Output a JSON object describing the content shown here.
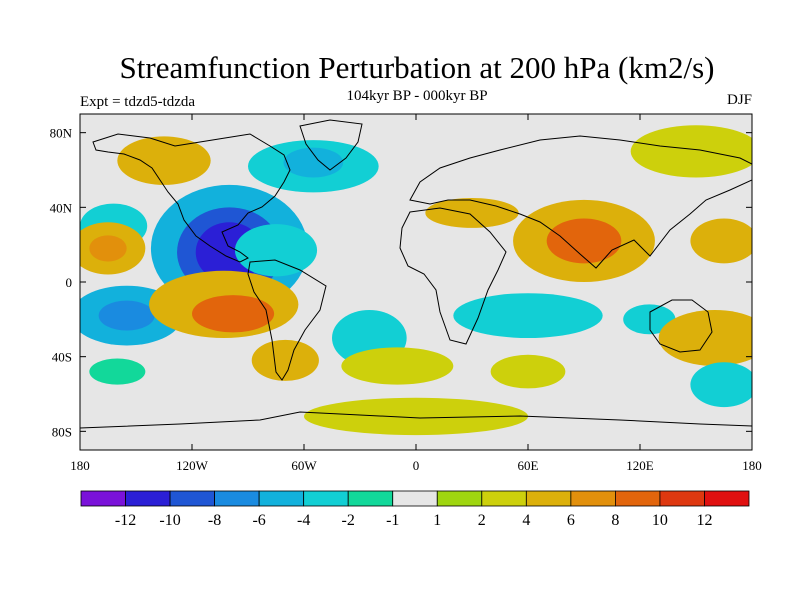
{
  "title": "Streamfunction Perturbation at 200 hPa (km2/s)",
  "subtitle": "104kyr BP - 000kyr BP",
  "left_label": "Expt = tdzd5-tdzda",
  "right_label": "DJF",
  "axes": {
    "lat_ticks": [
      {
        "lat": 80,
        "label": "80N"
      },
      {
        "lat": 40,
        "label": "40N"
      },
      {
        "lat": 0,
        "label": "0"
      },
      {
        "lat": -40,
        "label": "40S"
      },
      {
        "lat": -80,
        "label": "80S"
      }
    ],
    "lon_ticks": [
      {
        "lon": -180,
        "label": "180"
      },
      {
        "lon": -120,
        "label": "120W"
      },
      {
        "lon": -60,
        "label": "60W"
      },
      {
        "lon": 0,
        "label": "0"
      },
      {
        "lon": 60,
        "label": "60E"
      },
      {
        "lon": 120,
        "label": "120E"
      },
      {
        "lon": 180,
        "label": "180"
      }
    ],
    "lon_range": [
      -180,
      180
    ],
    "lat_range": [
      -90,
      90
    ]
  },
  "colorbar": {
    "colors": [
      "#7a12d9",
      "#2b1fd6",
      "#1f56d4",
      "#1a8be0",
      "#12b1dc",
      "#12cfd4",
      "#12d89a",
      "#e6e6e6",
      "#9fd60f",
      "#cdd00c",
      "#dcb00b",
      "#e2900c",
      "#e2650c",
      "#de3810",
      "#e01010"
    ],
    "labels": [
      "-12",
      "-10",
      "-8",
      "-6",
      "-4",
      "-2",
      "-1",
      "1",
      "2",
      "4",
      "6",
      "8",
      "10",
      "12"
    ]
  },
  "blobs": [
    {
      "lon": -100,
      "lat": 18,
      "rx": 42,
      "ry": 34,
      "v": -6
    },
    {
      "lon": -100,
      "lat": 16,
      "rx": 28,
      "ry": 24,
      "v": -9
    },
    {
      "lon": -100,
      "lat": 16,
      "rx": 18,
      "ry": 16,
      "v": -11
    },
    {
      "lon": -75,
      "lat": 17,
      "rx": 22,
      "ry": 14,
      "v": -4
    },
    {
      "lon": -162,
      "lat": 30,
      "rx": 18,
      "ry": 12,
      "v": -4
    },
    {
      "lon": -155,
      "lat": -18,
      "rx": 30,
      "ry": 16,
      "v": -6
    },
    {
      "lon": -155,
      "lat": -18,
      "rx": 15,
      "ry": 8,
      "v": -8
    },
    {
      "lon": -165,
      "lat": 18,
      "rx": 20,
      "ry": 14,
      "v": 4
    },
    {
      "lon": -165,
      "lat": 18,
      "rx": 10,
      "ry": 7,
      "v": 6
    },
    {
      "lon": -103,
      "lat": -12,
      "rx": 40,
      "ry": 18,
      "v": 4
    },
    {
      "lon": -98,
      "lat": -17,
      "rx": 22,
      "ry": 10,
      "v": 8
    },
    {
      "lon": -70,
      "lat": -42,
      "rx": 18,
      "ry": 11,
      "v": 4
    },
    {
      "lon": -25,
      "lat": -30,
      "rx": 20,
      "ry": 15,
      "v": -3
    },
    {
      "lon": 60,
      "lat": -18,
      "rx": 40,
      "ry": 12,
      "v": -3
    },
    {
      "lon": 125,
      "lat": -20,
      "rx": 14,
      "ry": 8,
      "v": -3
    },
    {
      "lon": 90,
      "lat": 22,
      "rx": 38,
      "ry": 22,
      "v": 4
    },
    {
      "lon": 90,
      "lat": 22,
      "rx": 20,
      "ry": 12,
      "v": 8
    },
    {
      "lon": 165,
      "lat": 22,
      "rx": 18,
      "ry": 12,
      "v": 4
    },
    {
      "lon": 160,
      "lat": -30,
      "rx": 30,
      "ry": 15,
      "v": 4
    },
    {
      "lon": 30,
      "lat": 37,
      "rx": 25,
      "ry": 8,
      "v": 5
    },
    {
      "lon": -55,
      "lat": 62,
      "rx": 35,
      "ry": 14,
      "v": -4
    },
    {
      "lon": -55,
      "lat": 64,
      "rx": 16,
      "ry": 8,
      "v": -5
    },
    {
      "lon": -135,
      "lat": 65,
      "rx": 25,
      "ry": 13,
      "v": 5
    },
    {
      "lon": 150,
      "lat": 70,
      "rx": 35,
      "ry": 14,
      "v": 3
    },
    {
      "lon": -160,
      "lat": -48,
      "rx": 15,
      "ry": 7,
      "v": -2
    },
    {
      "lon": 60,
      "lat": -48,
      "rx": 20,
      "ry": 9,
      "v": 3
    },
    {
      "lon": 165,
      "lat": -55,
      "rx": 18,
      "ry": 12,
      "v": -3
    },
    {
      "lon": -10,
      "lat": -45,
      "rx": 30,
      "ry": 10,
      "v": 2
    },
    {
      "lon": 0,
      "lat": -72,
      "rx": 60,
      "ry": 10,
      "v": 2
    }
  ]
}
